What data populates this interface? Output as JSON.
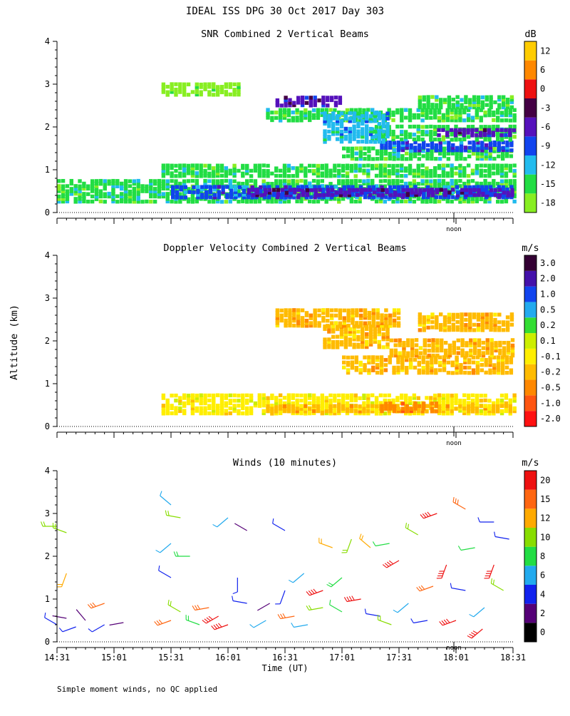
{
  "page": {
    "title": "IDEAL ISS DPG  30 Oct 2017 Day 303",
    "y_axis_label": "Altitude (km)",
    "x_axis_label": "Time (UT)",
    "footnote": "Simple moment winds, no QC applied",
    "noon_label": "noon"
  },
  "time_axis": {
    "tick_labels": [
      "14:31",
      "15:01",
      "15:31",
      "16:01",
      "16:31",
      "17:01",
      "17:31",
      "18:01",
      "18:31"
    ],
    "range_minutes": [
      0,
      240
    ],
    "noon_at_minutes": 210
  },
  "colors": {
    "white_bg": "#ffffff",
    "axis": "#000000",
    "snr_scale": [
      "#88ee22",
      "#22dd44",
      "#22bbee",
      "#1144ee",
      "#5511bb",
      "#440044",
      "#ee1111",
      "#ff8800",
      "#ffcc00"
    ],
    "vel_scale": [
      "#ff1111",
      "#ff5511",
      "#ff8800",
      "#ffbb00",
      "#ffee00",
      "#ccee00",
      "#33dd33",
      "#22aaee",
      "#1144ee",
      "#4411aa",
      "#330033"
    ],
    "wind_scale": [
      "#000000",
      "#550077",
      "#1122ee",
      "#22aaee",
      "#22dd44",
      "#88dd00",
      "#ffaa00",
      "#ff6611",
      "#ee1111"
    ]
  },
  "chart_data": [
    {
      "type": "heatmap",
      "title": "SNR Combined 2 Vertical Beams",
      "xlabel": "",
      "ylabel": "Altitude (km)",
      "xlim": [
        0,
        240
      ],
      "ylim": [
        0,
        4
      ],
      "y_ticks": [
        "0",
        "1",
        "2",
        "3",
        "4"
      ],
      "unit": "dB",
      "colorbar_labels": [
        "12",
        "6",
        "0",
        "-3",
        "-6",
        "-9",
        "-12",
        "-15",
        "-18"
      ],
      "bands": [
        {
          "t0": 0,
          "t1": 240,
          "z0": 0.2,
          "z1": 0.7,
          "v": -15
        },
        {
          "t0": 60,
          "t1": 240,
          "z0": 0.3,
          "z1": 0.55,
          "v": -10
        },
        {
          "t0": 100,
          "t1": 240,
          "z0": 0.35,
          "z1": 0.5,
          "v": -7
        },
        {
          "t0": 55,
          "t1": 240,
          "z0": 0.8,
          "z1": 1.05,
          "v": -16
        },
        {
          "t0": 150,
          "t1": 240,
          "z0": 1.2,
          "z1": 1.5,
          "v": -14
        },
        {
          "t0": 170,
          "t1": 240,
          "z0": 1.4,
          "z1": 1.6,
          "v": -8
        },
        {
          "t0": 165,
          "t1": 240,
          "z0": 1.65,
          "z1": 2.0,
          "v": -14
        },
        {
          "t0": 200,
          "t1": 240,
          "z0": 1.75,
          "z1": 1.9,
          "v": -7
        },
        {
          "t0": 110,
          "t1": 240,
          "z0": 2.1,
          "z1": 2.4,
          "v": -14
        },
        {
          "t0": 115,
          "t1": 150,
          "z0": 2.45,
          "z1": 2.65,
          "v": -6
        },
        {
          "t0": 140,
          "t1": 175,
          "z0": 1.6,
          "z1": 2.3,
          "v": -13
        },
        {
          "t0": 55,
          "t1": 95,
          "z0": 2.7,
          "z1": 2.95,
          "v": -17
        },
        {
          "t0": 190,
          "t1": 240,
          "z0": 2.4,
          "z1": 2.7,
          "v": -16
        }
      ]
    },
    {
      "type": "heatmap",
      "title": "Doppler Velocity Combined 2 Vertical Beams",
      "xlabel": "",
      "ylabel": "Altitude (km)",
      "xlim": [
        0,
        240
      ],
      "ylim": [
        0,
        4
      ],
      "y_ticks": [
        "0",
        "1",
        "2",
        "3",
        "4"
      ],
      "unit": "m/s",
      "colorbar_labels": [
        "3.0",
        "2.0",
        "1.0",
        "0.5",
        "0.2",
        "0.1",
        "-0.1",
        "-0.2",
        "-0.5",
        "-1.0",
        "-2.0"
      ],
      "bands": [
        {
          "t0": 55,
          "t1": 240,
          "z0": 0.25,
          "z1": 0.7,
          "v": -0.15
        },
        {
          "t0": 110,
          "t1": 240,
          "z0": 0.3,
          "z1": 0.45,
          "v": -0.3
        },
        {
          "t0": 170,
          "t1": 200,
          "z0": 0.3,
          "z1": 0.5,
          "v": -0.7
        },
        {
          "t0": 150,
          "t1": 240,
          "z0": 1.2,
          "z1": 1.6,
          "v": -0.2
        },
        {
          "t0": 175,
          "t1": 240,
          "z0": 1.6,
          "z1": 2.0,
          "v": -0.25
        },
        {
          "t0": 140,
          "t1": 175,
          "z0": 1.8,
          "z1": 2.3,
          "v": -0.3
        },
        {
          "t0": 115,
          "t1": 180,
          "z0": 2.3,
          "z1": 2.7,
          "v": -0.2
        },
        {
          "t0": 190,
          "t1": 240,
          "z0": 2.2,
          "z1": 2.6,
          "v": -0.2
        }
      ]
    },
    {
      "type": "scatter",
      "title": "Winds (10 minutes)",
      "xlabel": "Time (UT)",
      "ylabel": "Altitude (km)",
      "xlim": [
        0,
        240
      ],
      "ylim": [
        0,
        4
      ],
      "y_ticks": [
        "0",
        "1",
        "2",
        "3",
        "4"
      ],
      "unit": "m/s",
      "colorbar_labels": [
        "20",
        "15",
        "12",
        "10",
        "8",
        "6",
        "4",
        "2",
        "0"
      ],
      "marker": "wind barbs (speed m/s, direction deg)",
      "barbs": [
        {
          "t": 0,
          "z": 0.4,
          "s": 3,
          "d": 300
        },
        {
          "t": 5,
          "z": 0.55,
          "s": 2,
          "d": 280
        },
        {
          "t": 10,
          "z": 0.35,
          "s": 4,
          "d": 250
        },
        {
          "t": 15,
          "z": 0.5,
          "s": 2,
          "d": 320
        },
        {
          "t": 25,
          "z": 0.4,
          "s": 3,
          "d": 240
        },
        {
          "t": 35,
          "z": 0.45,
          "s": 2,
          "d": 260
        },
        {
          "t": 0,
          "z": 2.7,
          "s": 10,
          "d": 270
        },
        {
          "t": 5,
          "z": 2.55,
          "s": 9,
          "d": 290
        },
        {
          "t": 5,
          "z": 1.6,
          "s": 12,
          "d": 200
        },
        {
          "t": 25,
          "z": 0.9,
          "s": 14,
          "d": 250
        },
        {
          "t": 60,
          "z": 0.5,
          "s": 16,
          "d": 250
        },
        {
          "t": 65,
          "z": 0.7,
          "s": 9,
          "d": 300
        },
        {
          "t": 60,
          "z": 3.2,
          "s": 5,
          "d": 310
        },
        {
          "t": 65,
          "z": 2.9,
          "s": 10,
          "d": 280
        },
        {
          "t": 60,
          "z": 2.3,
          "s": 6,
          "d": 230
        },
        {
          "t": 60,
          "z": 1.5,
          "s": 4,
          "d": 300
        },
        {
          "t": 70,
          "z": 2.0,
          "s": 8,
          "d": 270
        },
        {
          "t": 75,
          "z": 0.4,
          "s": 8,
          "d": 290
        },
        {
          "t": 80,
          "z": 0.8,
          "s": 14,
          "d": 260
        },
        {
          "t": 85,
          "z": 0.6,
          "s": 20,
          "d": 240
        },
        {
          "t": 90,
          "z": 0.4,
          "s": 22,
          "d": 250
        },
        {
          "t": 90,
          "z": 2.9,
          "s": 5,
          "d": 230
        },
        {
          "t": 95,
          "z": 1.5,
          "s": 3,
          "d": 180
        },
        {
          "t": 100,
          "z": 0.9,
          "s": 4,
          "d": 280
        },
        {
          "t": 100,
          "z": 2.6,
          "s": 2,
          "d": 300
        },
        {
          "t": 110,
          "z": 0.5,
          "s": 5,
          "d": 240
        },
        {
          "t": 120,
          "z": 1.2,
          "s": 3,
          "d": 200
        },
        {
          "t": 120,
          "z": 2.6,
          "s": 3,
          "d": 300
        },
        {
          "t": 125,
          "z": 0.6,
          "s": 17,
          "d": 260
        },
        {
          "t": 130,
          "z": 1.6,
          "s": 6,
          "d": 230
        },
        {
          "t": 140,
          "z": 1.2,
          "s": 21,
          "d": 250
        },
        {
          "t": 140,
          "z": 0.8,
          "s": 9,
          "d": 260
        },
        {
          "t": 145,
          "z": 2.2,
          "s": 11,
          "d": 290
        },
        {
          "t": 150,
          "z": 0.7,
          "s": 7,
          "d": 300
        },
        {
          "t": 150,
          "z": 1.5,
          "s": 8,
          "d": 230
        },
        {
          "t": 155,
          "z": 2.4,
          "s": 10,
          "d": 200
        },
        {
          "t": 160,
          "z": 1.0,
          "s": 18,
          "d": 260
        },
        {
          "t": 165,
          "z": 2.2,
          "s": 12,
          "d": 310
        },
        {
          "t": 170,
          "z": 0.6,
          "s": 4,
          "d": 280
        },
        {
          "t": 175,
          "z": 2.3,
          "s": 7,
          "d": 260
        },
        {
          "t": 180,
          "z": 1.9,
          "s": 20,
          "d": 240
        },
        {
          "t": 185,
          "z": 0.9,
          "s": 5,
          "d": 230
        },
        {
          "t": 190,
          "z": 2.5,
          "s": 9,
          "d": 300
        },
        {
          "t": 195,
          "z": 0.5,
          "s": 3,
          "d": 260
        },
        {
          "t": 200,
          "z": 3.0,
          "s": 21,
          "d": 250
        },
        {
          "t": 205,
          "z": 1.8,
          "s": 22,
          "d": 200
        },
        {
          "t": 210,
          "z": 0.5,
          "s": 24,
          "d": 250
        },
        {
          "t": 215,
          "z": 1.2,
          "s": 4,
          "d": 280
        },
        {
          "t": 215,
          "z": 3.1,
          "s": 15,
          "d": 300
        },
        {
          "t": 220,
          "z": 2.2,
          "s": 7,
          "d": 260
        },
        {
          "t": 225,
          "z": 0.8,
          "s": 5,
          "d": 230
        },
        {
          "t": 230,
          "z": 1.8,
          "s": 21,
          "d": 200
        },
        {
          "t": 230,
          "z": 2.8,
          "s": 4,
          "d": 270
        },
        {
          "t": 235,
          "z": 1.2,
          "s": 9,
          "d": 300
        },
        {
          "t": 238,
          "z": 2.4,
          "s": 3,
          "d": 280
        },
        {
          "t": 112,
          "z": 0.9,
          "s": 2,
          "d": 240
        },
        {
          "t": 132,
          "z": 0.4,
          "s": 6,
          "d": 260
        },
        {
          "t": 176,
          "z": 0.4,
          "s": 10,
          "d": 290
        },
        {
          "t": 198,
          "z": 1.3,
          "s": 14,
          "d": 250
        },
        {
          "t": 224,
          "z": 0.3,
          "s": 19,
          "d": 230
        }
      ]
    }
  ]
}
